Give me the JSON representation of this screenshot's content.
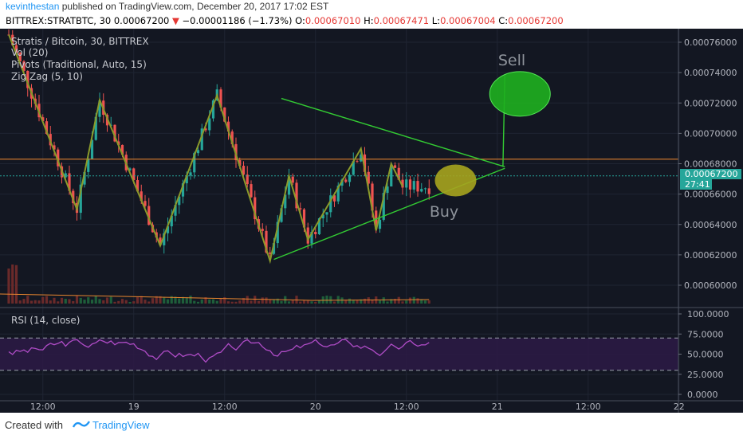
{
  "header": {
    "author": "kevinthestan",
    "published_text": " published on TradingView.com, December 20, 2017 17:02 EST",
    "symbol": "BITTREX:STRATBTC, 30",
    "last": "0.00067200",
    "change_arrow": "▼",
    "change": "−0.00001186 (−1.73%)",
    "o_label": "O:",
    "o_val": "0.00067010",
    "h_label": "H:",
    "h_val": "0.00067471",
    "l_label": "L:",
    "l_val": "0.00067004",
    "c_label": "C:",
    "c_val": "0.00067200"
  },
  "legend": {
    "title": "Stratis / Bitcoin, 30, BITTREX",
    "vol": "Vol (20)",
    "pivots": "Pivots (Traditional, Auto, 15)",
    "zigzag": "Zig Zag (5, 10)",
    "rsi": "RSI (14, close)"
  },
  "annotations": {
    "sell": "Sell",
    "buy": "Buy",
    "price_tag": "0.00067200",
    "countdown": "27:41"
  },
  "footer": {
    "created_with": "Created with",
    "brand": "TradingView"
  },
  "colors": {
    "background": "#131722",
    "up": "#26a69a",
    "down": "#ef5350",
    "zigzag": "#8a9a2a",
    "trendline": "#33cc33",
    "sell_ellipse": "#1fb01f",
    "buy_ellipse": "#a7a41e",
    "pivot_line": "#e8862f",
    "rsi_line": "#b04cc7",
    "rsi_band": "#2d1a45",
    "brand": "#2196f3"
  },
  "chart_data": {
    "type": "candlestick",
    "symbol": "STRATBTC",
    "interval": "30",
    "price_axis": {
      "ticks": [
        "0.00076000",
        "0.00074000",
        "0.00072000",
        "0.00070000",
        "0.00068000",
        "0.00066000",
        "0.00064000",
        "0.00062000",
        "0.00060000"
      ],
      "range": [
        0.000588,
        0.00077
      ]
    },
    "rsi_axis": {
      "ticks": [
        "100.0000",
        "75.0000",
        "50.0000",
        "25.0000",
        "0.0000"
      ],
      "range": [
        0,
        100
      ],
      "upper_band": 70,
      "lower_band": 30
    },
    "time_axis": {
      "ticks": [
        {
          "label": "12:00",
          "t": 9
        },
        {
          "label": "19",
          "t": 33
        },
        {
          "label": "12:00",
          "t": 57
        },
        {
          "label": "20",
          "t": 81
        },
        {
          "label": "12:00",
          "t": 105
        },
        {
          "label": "21",
          "t": 129
        },
        {
          "label": "12:00",
          "t": 153
        },
        {
          "label": "22",
          "t": 177
        }
      ]
    },
    "zigzag": [
      {
        "t": 0,
        "p": 0.000765
      },
      {
        "t": 18,
        "p": 0.00065
      },
      {
        "t": 24,
        "p": 0.000722
      },
      {
        "t": 40,
        "p": 0.000626
      },
      {
        "t": 55,
        "p": 0.000725
      },
      {
        "t": 69,
        "p": 0.000616
      },
      {
        "t": 74,
        "p": 0.000672
      },
      {
        "t": 79,
        "p": 0.00063
      },
      {
        "t": 93,
        "p": 0.00069
      },
      {
        "t": 97,
        "p": 0.000636
      },
      {
        "t": 101,
        "p": 0.00068
      },
      {
        "t": 104,
        "p": 0.000665
      }
    ],
    "trendlines": [
      {
        "from": {
          "t": 72,
          "p": 0.000723
        },
        "to": {
          "t": 131,
          "p": 0.000678
        }
      },
      {
        "from": {
          "t": 70,
          "p": 0.000617
        },
        "to": {
          "t": 131,
          "p": 0.000677
        }
      },
      {
        "from": {
          "t": 130.5,
          "p": 0.000678
        },
        "to": {
          "t": 131,
          "p": 0.000738
        }
      }
    ],
    "pivot_level": 0.000683,
    "last_price": 0.000672,
    "sell_target": {
      "t": 135,
      "p": 0.000726
    },
    "buy_zone": {
      "t": 118,
      "p": 0.000669
    }
  }
}
